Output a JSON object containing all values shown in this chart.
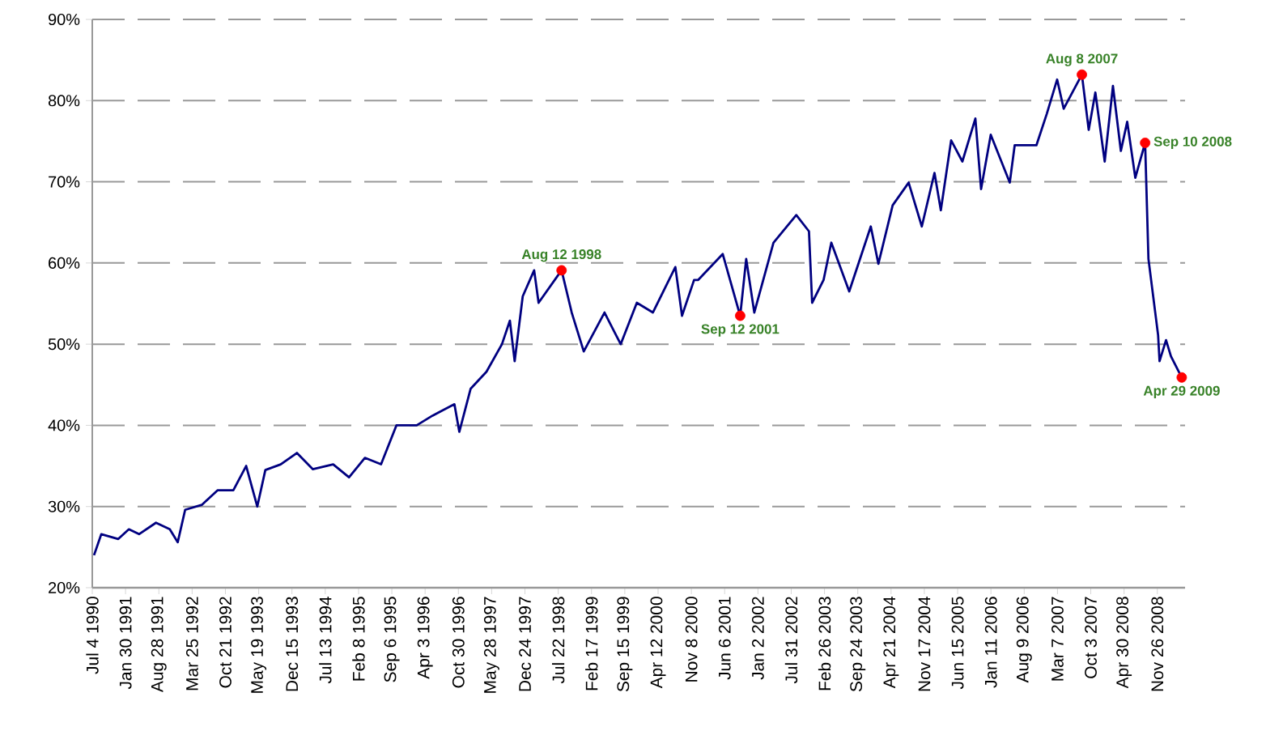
{
  "chart_data": {
    "type": "line",
    "x": [
      "1990-07-15",
      "1990-08-30",
      "1990-12-15",
      "1991-02-20",
      "1991-04-25",
      "1991-08-10",
      "1991-11-05",
      "1991-12-25",
      "1992-02-10",
      "1992-05-25",
      "1992-09-01",
      "1992-12-10",
      "1993-03-01",
      "1993-05-10",
      "1993-06-30",
      "1993-10-05",
      "1994-01-15",
      "1994-04-25",
      "1994-09-01",
      "1994-12-10",
      "1995-03-20",
      "1995-06-30",
      "1995-10-05",
      "1996-02-10",
      "1996-05-20",
      "1996-10-05",
      "1996-11-05",
      "1997-01-15",
      "1997-04-25",
      "1997-08-01",
      "1997-09-20",
      "1997-10-20",
      "1997-12-10",
      "1998-02-20",
      "1998-03-20",
      "1998-08-12",
      "1998-10-15",
      "1998-12-30",
      "1999-05-10",
      "1999-08-20",
      "1999-11-30",
      "2000-03-10",
      "2000-07-30",
      "2000-09-10",
      "2000-11-25",
      "2000-12-20",
      "2001-05-25",
      "2001-09-12",
      "2001-10-20",
      "2001-12-10",
      "2002-04-10",
      "2002-09-01",
      "2002-11-20",
      "2002-12-10",
      "2003-02-20",
      "2003-04-10",
      "2003-08-01",
      "2003-12-15",
      "2004-02-01",
      "2004-05-01",
      "2004-08-10",
      "2004-11-01",
      "2005-01-20",
      "2005-03-01",
      "2005-05-05",
      "2005-07-15",
      "2005-10-05",
      "2005-11-10",
      "2006-01-10",
      "2006-05-10",
      "2006-06-10",
      "2006-10-25",
      "2006-12-30",
      "2007-03-05",
      "2007-04-15",
      "2007-08-08",
      "2007-09-20",
      "2007-11-01",
      "2007-12-30",
      "2008-02-20",
      "2008-04-10",
      "2008-05-20",
      "2008-07-10",
      "2008-09-10",
      "2008-10-01",
      "2008-12-01",
      "2008-12-10",
      "2009-01-20",
      "2009-02-20",
      "2009-04-29"
    ],
    "series": [
      {
        "color": "#000080",
        "values": [
          24.0,
          26.6,
          26.0,
          27.2,
          26.6,
          28.0,
          27.2,
          25.6,
          29.6,
          30.2,
          32.0,
          32.0,
          35.0,
          30.0,
          34.5,
          35.2,
          36.6,
          34.6,
          35.2,
          33.6,
          36.0,
          35.2,
          40.0,
          40.0,
          41.2,
          42.6,
          39.2,
          44.5,
          46.6,
          50.0,
          52.9,
          47.9,
          55.9,
          59.1,
          55.1,
          59.1,
          53.9,
          49.1,
          53.9,
          50.0,
          55.1,
          53.9,
          59.5,
          53.5,
          57.9,
          57.9,
          61.1,
          53.5,
          60.5,
          53.9,
          62.5,
          65.9,
          63.9,
          55.1,
          57.9,
          62.5,
          56.5,
          64.5,
          59.9,
          67.1,
          69.9,
          64.5,
          71.1,
          66.5,
          75.1,
          72.5,
          77.8,
          69.1,
          75.8,
          69.9,
          74.5,
          74.5,
          78.4,
          82.6,
          79.0,
          83.2,
          76.4,
          81.0,
          72.5,
          81.8,
          73.8,
          77.4,
          70.5,
          74.8,
          60.5,
          51.1,
          47.9,
          50.5,
          48.5,
          45.9
        ]
      },
      {
        "type": "scatter",
        "color": "#ff0000",
        "x": [
          "1998-08-12",
          "2001-09-12",
          "2007-08-08",
          "2008-09-10",
          "2009-04-29"
        ],
        "values": [
          59.1,
          53.5,
          83.2,
          74.8,
          45.9
        ]
      }
    ],
    "annotations": [
      {
        "text": "Aug 12 1998",
        "x": "1998-08-12",
        "y": 59.1
      },
      {
        "text": "Sep 12 2001",
        "x": "2001-09-12",
        "y": 53.5
      },
      {
        "text": "Aug 8 2007",
        "x": "2007-08-08",
        "y": 83.2
      },
      {
        "text": "Sep 10 2008",
        "x": "2008-09-10",
        "y": 74.8
      },
      {
        "text": "Apr 29 2009",
        "x": "2009-04-29",
        "y": 45.9
      }
    ],
    "xlim": [
      "1990-07-04",
      "2009-05-20"
    ],
    "xticks": [
      {
        "value": "1990-07-04",
        "label": "Jul 4 1990"
      },
      {
        "value": "1991-01-30",
        "label": "Jan 30 1991"
      },
      {
        "value": "1991-08-28",
        "label": "Aug 28 1991"
      },
      {
        "value": "1992-03-25",
        "label": "Mar 25 1992"
      },
      {
        "value": "1992-10-21",
        "label": "Oct 21 1992"
      },
      {
        "value": "1993-05-19",
        "label": "May 19 1993"
      },
      {
        "value": "1993-12-15",
        "label": "Dec 15 1993"
      },
      {
        "value": "1994-07-13",
        "label": "Jul 13 1994"
      },
      {
        "value": "1995-02-08",
        "label": "Feb 8 1995"
      },
      {
        "value": "1995-09-06",
        "label": "Sep 6 1995"
      },
      {
        "value": "1996-04-03",
        "label": "Apr 3 1996"
      },
      {
        "value": "1996-10-30",
        "label": "Oct 30 1996"
      },
      {
        "value": "1997-05-28",
        "label": "May 28 1997"
      },
      {
        "value": "1997-12-24",
        "label": "Dec 24 1997"
      },
      {
        "value": "1998-07-22",
        "label": "Jul 22 1998"
      },
      {
        "value": "1999-02-17",
        "label": "Feb 17 1999"
      },
      {
        "value": "1999-09-15",
        "label": "Sep 15 1999"
      },
      {
        "value": "2000-04-12",
        "label": "Apr 12 2000"
      },
      {
        "value": "2000-11-08",
        "label": "Nov 8 2000"
      },
      {
        "value": "2001-06-06",
        "label": "Jun 6 2001"
      },
      {
        "value": "2002-01-02",
        "label": "Jan 2 2002"
      },
      {
        "value": "2002-07-31",
        "label": "Jul 31 2002"
      },
      {
        "value": "2003-02-26",
        "label": "Feb 26 2003"
      },
      {
        "value": "2003-09-24",
        "label": "Sep 24 2003"
      },
      {
        "value": "2004-04-21",
        "label": "Apr 21 2004"
      },
      {
        "value": "2004-11-17",
        "label": "Nov 17 2004"
      },
      {
        "value": "2005-06-15",
        "label": "Jun 15 2005"
      },
      {
        "value": "2006-01-11",
        "label": "Jan 11 2006"
      },
      {
        "value": "2006-08-09",
        "label": "Aug 9 2006"
      },
      {
        "value": "2007-03-07",
        "label": "Mar 7 2007"
      },
      {
        "value": "2007-10-03",
        "label": "Oct 3 2007"
      },
      {
        "value": "2008-04-30",
        "label": "Apr 30 2008"
      },
      {
        "value": "2008-11-26",
        "label": "Nov 26 2008"
      }
    ],
    "ylim": [
      20,
      90
    ],
    "yticks": [
      {
        "value": 20,
        "label": "20%"
      },
      {
        "value": 30,
        "label": "30%"
      },
      {
        "value": 40,
        "label": "40%"
      },
      {
        "value": 50,
        "label": "50%"
      },
      {
        "value": 60,
        "label": "60%"
      },
      {
        "value": 70,
        "label": "70%"
      },
      {
        "value": 80,
        "label": "80%"
      },
      {
        "value": 90,
        "label": "90%"
      }
    ],
    "grid": "y",
    "legend": false,
    "line_style": "solid"
  }
}
